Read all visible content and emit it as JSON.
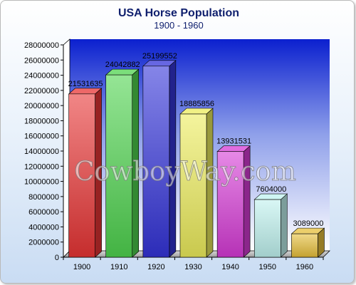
{
  "chart_data": {
    "type": "bar",
    "title": "USA Horse Population",
    "subtitle": "1900 - 1960",
    "xlabel": "",
    "ylabel": "",
    "categories": [
      "1900",
      "1910",
      "1920",
      "1930",
      "1940",
      "1950",
      "1960"
    ],
    "values": [
      21531635,
      24042882,
      25199552,
      18885856,
      13931531,
      7604000,
      3089000
    ],
    "data_labels": [
      "21531635",
      "24042882",
      "25199552",
      "18885856",
      "13931531",
      "7604000",
      "3089000"
    ],
    "ylim": [
      0,
      28000000
    ],
    "yticks": [
      0,
      2000000,
      4000000,
      6000000,
      8000000,
      10000000,
      12000000,
      14000000,
      16000000,
      18000000,
      20000000,
      22000000,
      24000000,
      26000000,
      28000000
    ],
    "ytick_labels": [
      "0",
      "2000000",
      "4000000",
      "6000000",
      "8000000",
      "10000000",
      "12000000",
      "14000000",
      "16000000",
      "18000000",
      "20000000",
      "22000000",
      "24000000",
      "26000000",
      "28000000"
    ],
    "grid": false,
    "legend": "none",
    "bar_colors": [
      "#e83535",
      "#4fd34f",
      "#3434d8",
      "#ecec5c",
      "#d63bd6",
      "#bff2ef",
      "#e6bf3a"
    ]
  },
  "watermark": "CowboyWay.com",
  "colors": {
    "title": "#10206e",
    "plot_background_top": "#0b20cf",
    "plot_background_bottom": "#ffffff"
  }
}
